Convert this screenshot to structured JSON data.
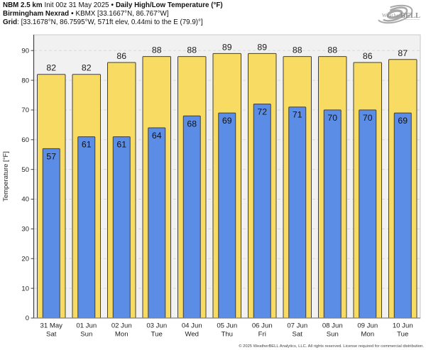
{
  "header": {
    "model": "NBM 2.5 km",
    "init": "Init 00z 31 May 2025",
    "sep1": "•",
    "product": "Daily High/Low Temperature (°F)",
    "station_name": "Birmingham Nexrad",
    "sep2": "•",
    "station_id": "KBMX [33.1667°N, 86.767°W]",
    "grid_label": "Grid",
    "grid_info": ": [33.1678°N, 86.7595°W, 571ft elev, 0.44mi to the E (79.9)°]"
  },
  "logo": {
    "weather": "Weather",
    "bell": "BELL"
  },
  "chart_data": {
    "type": "bar",
    "title": "Daily High/Low Temperature (°F)",
    "ylabel": "Temperature [°F]",
    "xlabel": "",
    "ylim": [
      0,
      90
    ],
    "yticks": [
      0,
      10,
      20,
      30,
      40,
      50,
      60,
      70,
      80,
      90
    ],
    "grid": "horizontal-dashed",
    "legend_position": "none",
    "categories": [
      {
        "date": "31 May",
        "day": "Sat"
      },
      {
        "date": "01 Jun",
        "day": "Sun"
      },
      {
        "date": "02 Jun",
        "day": "Mon"
      },
      {
        "date": "03 Jun",
        "day": "Tue"
      },
      {
        "date": "04 Jun",
        "day": "Wed"
      },
      {
        "date": "05 Jun",
        "day": "Thu"
      },
      {
        "date": "06 Jun",
        "day": "Fri"
      },
      {
        "date": "07 Jun",
        "day": "Sat"
      },
      {
        "date": "08 Jun",
        "day": "Sun"
      },
      {
        "date": "09 Jun",
        "day": "Mon"
      },
      {
        "date": "10 Jun",
        "day": "Tue"
      }
    ],
    "series": [
      {
        "name": "Daily High",
        "color": "#f8db63",
        "values": [
          82,
          82,
          86,
          88,
          88,
          89,
          89,
          88,
          88,
          86,
          87
        ]
      },
      {
        "name": "Daily Low",
        "color": "#5c8de6",
        "values": [
          57,
          61,
          61,
          64,
          68,
          69,
          72,
          71,
          70,
          70,
          69
        ]
      }
    ],
    "bar_border_color": "#3f3f3f",
    "plot_bg_color": "#f1f1f1",
    "grid_color": "#d9d9d9"
  },
  "footer": {
    "copyright": "© 2025 WeatherBELL Analytics, LLC. All rights reserved. License required for commercial distribution."
  }
}
